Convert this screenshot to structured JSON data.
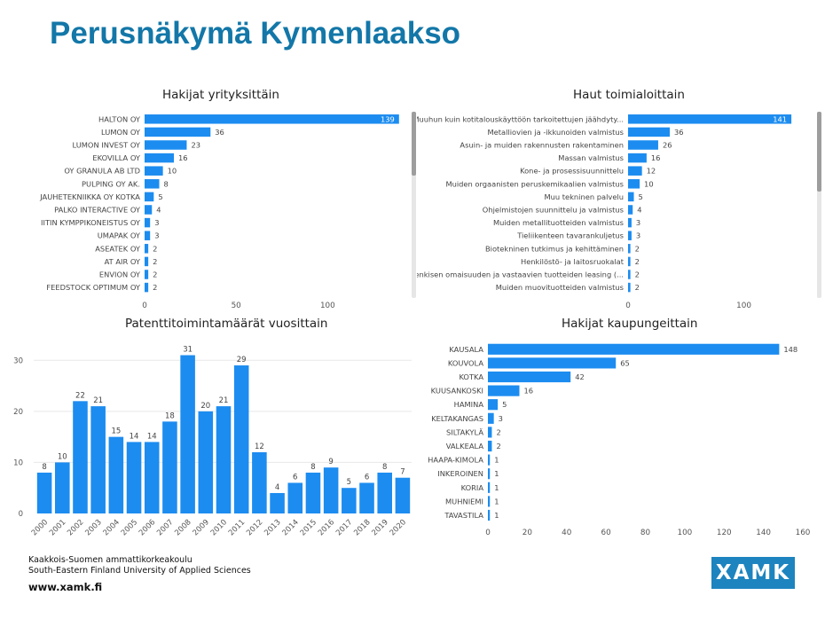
{
  "page": {
    "title": "Perusnäkymä Kymenlaakso",
    "footer_line1": "Kaakkois-Suomen ammattikorkeakoulu",
    "footer_line2": "South-Eastern Finland University of Applied Sciences",
    "footer_url": "www.xamk.fi",
    "logo_text": "XAMK"
  },
  "colors": {
    "bar": "#1c8cf0",
    "label": "#444444",
    "axis": "#555555",
    "gridline": "#e8e8e8"
  },
  "chart_data": [
    {
      "id": "c1",
      "type": "bar",
      "orientation": "horizontal",
      "title": "Hakijat yrityksittäin",
      "categories": [
        "HALTON OY",
        "LUMON OY",
        "LUMON INVEST OY",
        "EKOVILLA OY",
        "OY GRANULA AB LTD",
        "PULPING OY AK.",
        "JAUHETEKNIIKKA OY KOTKA",
        "PALKO INTERACTIVE OY",
        "IITIN KYMPPIKONEISTUS OY",
        "UMAPAK OY",
        "ASEATEK OY",
        "AT AIR OY",
        "ENVION OY",
        "FEEDSTOCK OPTIMUM OY"
      ],
      "values": [
        139,
        36,
        23,
        16,
        10,
        8,
        5,
        4,
        3,
        3,
        2,
        2,
        2,
        2
      ],
      "xlim": [
        0,
        142
      ],
      "xticks": [
        "0",
        "50",
        "100"
      ],
      "xtick_values": [
        0,
        50,
        100
      ],
      "xlabel": "",
      "ylabel": ""
    },
    {
      "id": "c2",
      "type": "bar",
      "orientation": "horizontal",
      "title": "Haut toimialoittain",
      "categories": [
        "Muuhun kuin kotitalouskäyttöön tarkoitettujen jäähdyty...",
        "Metalliovien ja -ikkunoiden valmistus",
        "Asuin- ja muiden rakennusten rakentaminen",
        "Massan valmistus",
        "Kone- ja prosessisuunnittelu",
        "Muiden orgaanisten peruskemikaalien valmistus",
        "Muu tekninen palvelu",
        "Ohjelmistojen suunnittelu ja valmistus",
        "Muiden metallituotteiden valmistus",
        "Tieliikenteen tavarankuljetus",
        "Biotekninen tutkimus ja kehittäminen",
        "Henkilöstö- ja laitosruokalat",
        "Henkisen omaisuuden ja vastaavien tuotteiden leasing (...",
        "Muiden muovituotteiden valmistus"
      ],
      "values": [
        141,
        36,
        26,
        16,
        12,
        10,
        5,
        4,
        3,
        3,
        2,
        2,
        2,
        2
      ],
      "xlim": [
        0,
        144
      ],
      "xticks": [
        "0",
        "100"
      ],
      "xtick_values": [
        0,
        100
      ],
      "xlabel": "",
      "ylabel": ""
    },
    {
      "id": "c3",
      "type": "bar",
      "orientation": "vertical",
      "title": "Patenttitoimintamäärät vuosittain",
      "categories": [
        "2000",
        "2001",
        "2002",
        "2003",
        "2004",
        "2005",
        "2006",
        "2007",
        "2008",
        "2009",
        "2010",
        "2011",
        "2012",
        "2013",
        "2014",
        "2015",
        "2016",
        "2017",
        "2018",
        "2019",
        "2020"
      ],
      "values": [
        8,
        10,
        22,
        21,
        15,
        14,
        14,
        18,
        31,
        20,
        21,
        29,
        12,
        4,
        6,
        8,
        9,
        5,
        6,
        8,
        7
      ],
      "ylim": [
        0,
        33
      ],
      "yticks": [
        "0",
        "10",
        "20",
        "30"
      ],
      "ytick_values": [
        0,
        10,
        20,
        30
      ],
      "xlabel": "",
      "ylabel": ""
    },
    {
      "id": "c4",
      "type": "bar",
      "orientation": "horizontal",
      "title": "Hakijat kaupungeittain",
      "categories": [
        "KAUSALA",
        "KOUVOLA",
        "KOTKA",
        "KUUSANKOSKI",
        "HAMINA",
        "KELTAKANGAS",
        "SILTAKYLÄ",
        "VALKEALA",
        "HAAPA-KIMOLA",
        "INKEROINEN",
        "KORIA",
        "MUHNIEMI",
        "TAVASTILA"
      ],
      "values": [
        148,
        65,
        42,
        16,
        5,
        3,
        2,
        2,
        1,
        1,
        1,
        1,
        1
      ],
      "xlim": [
        0,
        160
      ],
      "xticks": [
        "0",
        "20",
        "40",
        "60",
        "80",
        "100",
        "120",
        "140",
        "160"
      ],
      "xtick_values": [
        0,
        20,
        40,
        60,
        80,
        100,
        120,
        140,
        160
      ],
      "xlabel": "",
      "ylabel": ""
    }
  ]
}
